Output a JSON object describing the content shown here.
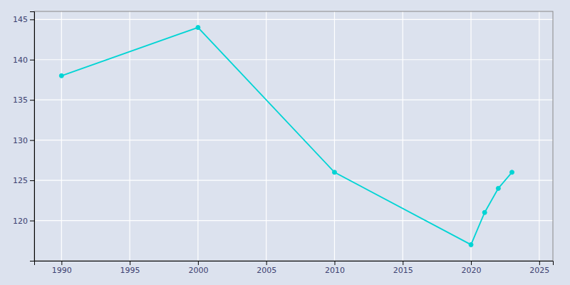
{
  "chart_data": {
    "type": "line",
    "x": [
      1990,
      2000,
      2010,
      2020,
      2021,
      2022,
      2023
    ],
    "values": [
      138,
      144,
      126,
      117,
      121,
      124,
      126
    ],
    "color": "#00D4D4",
    "marker": "circle",
    "xlim": [
      1988,
      2026
    ],
    "ylim": [
      115,
      146
    ],
    "xticks": [
      1990,
      1995,
      2000,
      2005,
      2010,
      2015,
      2020,
      2025
    ],
    "yticks": [
      120,
      125,
      130,
      135,
      140,
      145
    ],
    "grid": true
  }
}
